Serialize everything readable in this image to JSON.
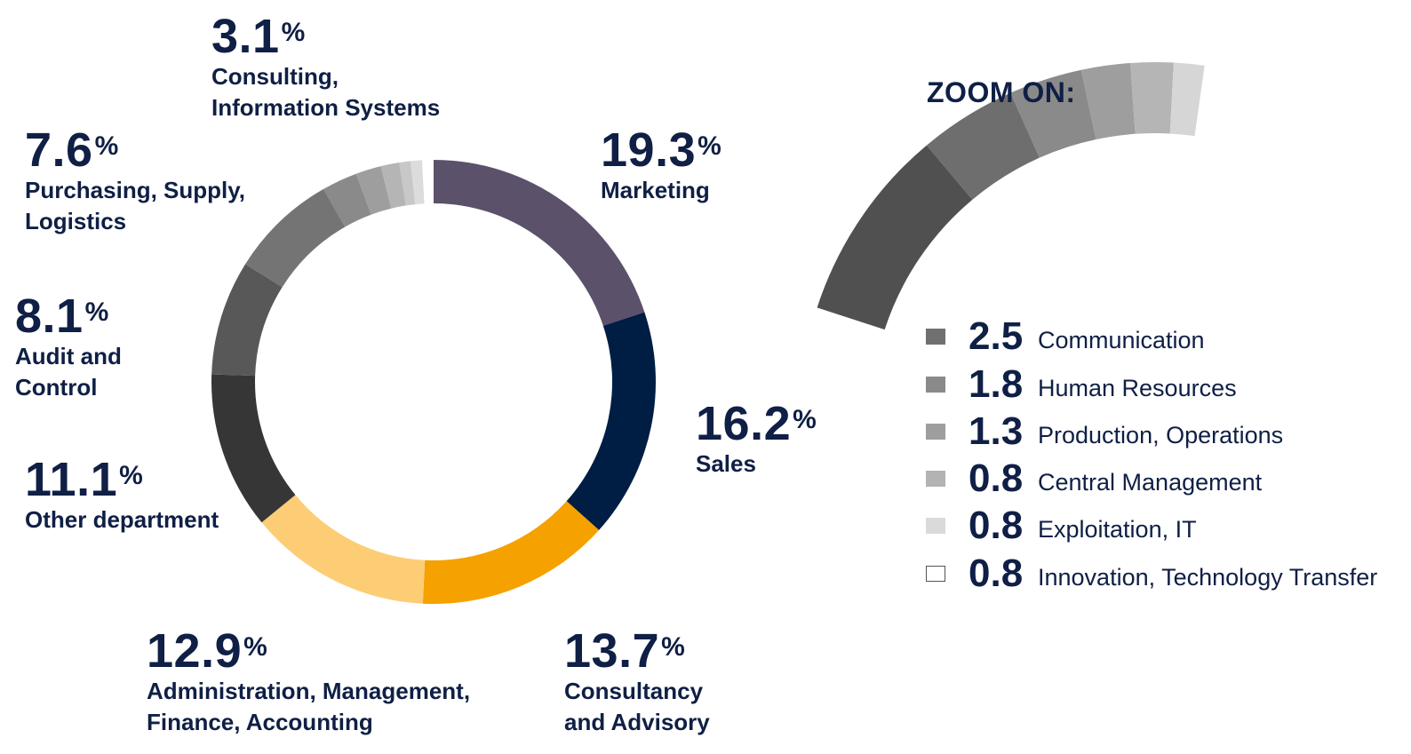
{
  "chart_data": {
    "type": "donut",
    "main": {
      "segments": [
        {
          "name": "Marketing",
          "value": 19.3,
          "color": "#5b516a"
        },
        {
          "name": "Sales",
          "value": 16.2,
          "color": "#001d44"
        },
        {
          "name": "Consultancy and Advisory",
          "value": 13.7,
          "color": "#f5a100"
        },
        {
          "name": "Administration, Management, Finance, Accounting",
          "value": 12.9,
          "color": "#fdcd76"
        },
        {
          "name": "Other department",
          "value": 11.1,
          "color": "#363636"
        },
        {
          "name": "Audit and Control",
          "value": 8.1,
          "color": "#585858"
        },
        {
          "name": "Purchasing, Supply, Logistics",
          "value": 7.6,
          "color": "#747474"
        },
        {
          "name": "Communication",
          "value": 2.5,
          "color": "#8a8a8a"
        },
        {
          "name": "Human Resources",
          "value": 1.8,
          "color": "#9e9e9e"
        },
        {
          "name": "Production, Operations",
          "value": 1.3,
          "color": "#b5b5b5"
        },
        {
          "name": "Central Management",
          "value": 0.8,
          "color": "#c8c8c8"
        },
        {
          "name": "Exploitation, IT",
          "value": 0.8,
          "color": "#dcdcdc"
        },
        {
          "name": "Innovation, Technology Transfer",
          "value": 0.8,
          "color": "#ffffff"
        }
      ],
      "labels": [
        {
          "value": "19.3",
          "unit": "%",
          "lines": [
            "Marketing"
          ]
        },
        {
          "value": "16.2",
          "unit": "%",
          "lines": [
            "Sales"
          ]
        },
        {
          "value": "13.7",
          "unit": "%",
          "lines": [
            "Consultancy",
            "and Advisory"
          ]
        },
        {
          "value": "12.9",
          "unit": "%",
          "lines": [
            "Administration, Management,",
            "Finance, Accounting"
          ]
        },
        {
          "value": "11.1",
          "unit": "%",
          "lines": [
            "Other department"
          ]
        },
        {
          "value": "8.1",
          "unit": "%",
          "lines": [
            "Audit and",
            "Control"
          ]
        },
        {
          "value": "7.6",
          "unit": "%",
          "lines": [
            "Purchasing, Supply,",
            "Logistics"
          ]
        },
        {
          "value": "3.1",
          "unit": "%",
          "lines": [
            "Consulting,",
            "Information Systems"
          ]
        }
      ]
    },
    "zoom": {
      "title": "ZOOM ON:",
      "items": [
        {
          "value": "2.5",
          "name": "Communication",
          "color": "#707070"
        },
        {
          "value": "1.8",
          "name": "Human Resources",
          "color": "#8a8a8a"
        },
        {
          "value": "1.3",
          "name": "Production, Operations",
          "color": "#9e9e9e"
        },
        {
          "value": "0.8",
          "name": "Central Management",
          "color": "#b3b3b3"
        },
        {
          "value": "0.8",
          "name": "Exploitation, IT",
          "color": "#dadada"
        },
        {
          "value": "0.8",
          "name": "Innovation, Technology Transfer",
          "color": "#ffffff"
        }
      ]
    }
  }
}
